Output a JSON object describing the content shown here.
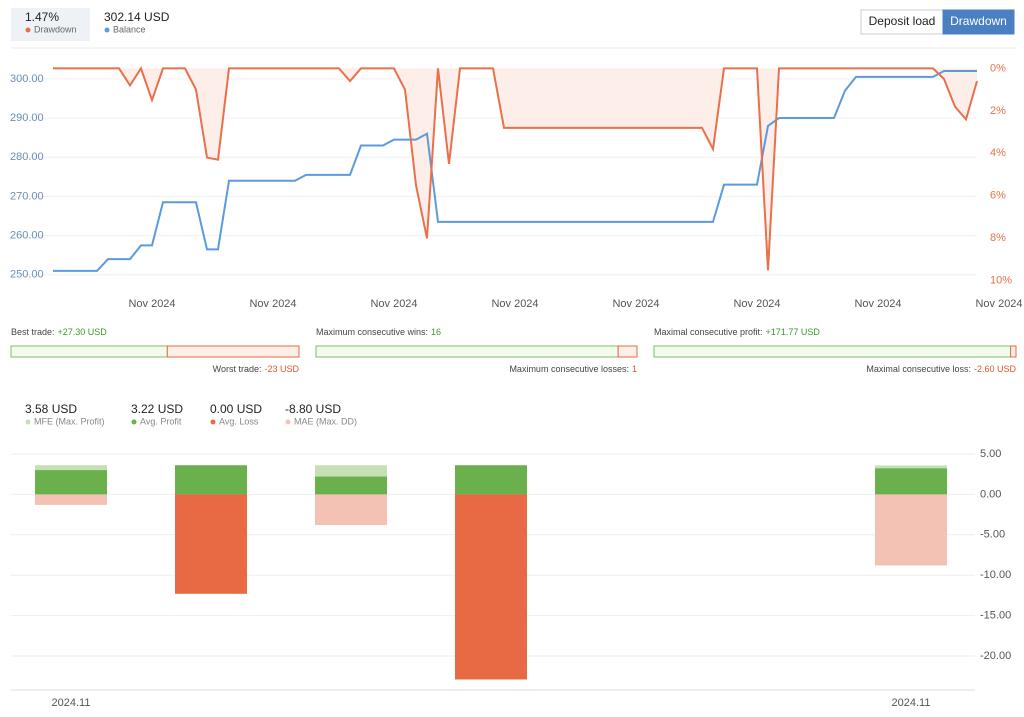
{
  "header": {
    "tabs": [
      "Deposit load",
      "Drawdown"
    ],
    "active_tab": 1
  },
  "chart_data": [
    {
      "type": "line",
      "categories": [
        null,
        null,
        null,
        null,
        null,
        null,
        null,
        null,
        null,
        "Nov 2024",
        null,
        null,
        null,
        null,
        null,
        null,
        null,
        null,
        null,
        null,
        "Nov 2024",
        null,
        null,
        null,
        null,
        null,
        null,
        null,
        null,
        null,
        null,
        "Nov 2024",
        null,
        null,
        null,
        null,
        null,
        null,
        null,
        null,
        null,
        null,
        "Nov 2024",
        null,
        null,
        null,
        null,
        null,
        null,
        null,
        null,
        null,
        null,
        "Nov 2024",
        null,
        null,
        null,
        null,
        null,
        null,
        null,
        null,
        null,
        null,
        "Nov 2024",
        null,
        null,
        null,
        null,
        null,
        null,
        null,
        null,
        null,
        null,
        "Nov 2024",
        null,
        null,
        null,
        null,
        null,
        null,
        null,
        null,
        null,
        null,
        "Nov 2024"
      ],
      "series": [
        {
          "name": "Drawdown",
          "summary": "1.47%",
          "color": "#e8704a",
          "axis": "y2",
          "area_color": "#fdeee9",
          "values": [
            0,
            0,
            0,
            0,
            0,
            0,
            0,
            0.8,
            0,
            1.5,
            0,
            0,
            0,
            1.0,
            4.2,
            4.3,
            0,
            0,
            0,
            0,
            0,
            0,
            0,
            0,
            0,
            0,
            0,
            0.6,
            0,
            0,
            0,
            0,
            1.0,
            5.5,
            8.0,
            0,
            4.5,
            0,
            0,
            0,
            0,
            2.8,
            2.8,
            2.8,
            2.8,
            2.8,
            2.8,
            2.8,
            2.8,
            2.8,
            2.8,
            2.8,
            2.8,
            2.8,
            2.8,
            2.8,
            2.8,
            2.8,
            2.8,
            2.8,
            3.8,
            0,
            0,
            0,
            0,
            9.5,
            0,
            0,
            0,
            0,
            0,
            0,
            0,
            0,
            0,
            0,
            0,
            0,
            0,
            0,
            0,
            0.5,
            1.8,
            2.4,
            0.6,
            null,
            null
          ]
        },
        {
          "name": "Balance",
          "summary": "302.14 USD",
          "color": "#5b9bdd",
          "axis": "y",
          "values": [
            251,
            251,
            251,
            251,
            251,
            254,
            254,
            254,
            257.5,
            257.5,
            268.5,
            268.5,
            268.5,
            268.5,
            256.5,
            256.5,
            274,
            274,
            274,
            274,
            274,
            274,
            274,
            275.5,
            275.5,
            275.5,
            275.5,
            275.5,
            283,
            283,
            283,
            284.5,
            284.5,
            284.5,
            286,
            263.5,
            263.5,
            263.5,
            263.5,
            263.5,
            263.5,
            263.5,
            263.5,
            263.5,
            263.5,
            263.5,
            263.5,
            263.5,
            263.5,
            263.5,
            263.5,
            263.5,
            263.5,
            263.5,
            263.5,
            263.5,
            263.5,
            263.5,
            263.5,
            263.5,
            263.5,
            273,
            273,
            273,
            273,
            288,
            290,
            290,
            290,
            290,
            290,
            290,
            297,
            300.5,
            300.5,
            300.5,
            300.5,
            300.5,
            300.5,
            300.5,
            300.5,
            302,
            302,
            302,
            302,
            null,
            null
          ]
        }
      ],
      "ylim": [
        247.4,
        304.3
      ],
      "yticks": [
        {
          "value": 250,
          "label": "250.00"
        },
        {
          "value": 260,
          "label": "260.00"
        },
        {
          "value": 270,
          "label": "270.00"
        },
        {
          "value": 280,
          "label": "280.00"
        },
        {
          "value": 290,
          "label": "290.00"
        },
        {
          "value": 300,
          "label": "300.00"
        }
      ],
      "y2lim": [
        -0.3,
        10.2
      ],
      "y2_inverted": true,
      "y2ticks": [
        {
          "value": 0,
          "label": "0%"
        },
        {
          "value": 2,
          "label": "2%"
        },
        {
          "value": 4,
          "label": "4%"
        },
        {
          "value": 6,
          "label": "6%"
        },
        {
          "value": 8,
          "label": "8%"
        },
        {
          "value": 10,
          "label": "10%"
        }
      ],
      "grid": true
    },
    {
      "type": "bar",
      "categories": [
        "2024.11",
        null,
        null,
        null,
        null,
        null,
        "2024.11"
      ],
      "series": [
        {
          "name": "MFE (Max. Profit)",
          "summary": "3.58 USD",
          "color": "#c5e0b4",
          "values": [
            3.6,
            3.6,
            3.6,
            3.6,
            null,
            null,
            3.58
          ]
        },
        {
          "name": "Avg. Profit",
          "summary": "3.22 USD",
          "color": "#6ab04c",
          "values": [
            3.0,
            3.6,
            2.2,
            3.6,
            null,
            null,
            3.22
          ]
        },
        {
          "name": "Avg. Loss",
          "summary": "0.00 USD",
          "color": "#e86a45",
          "values": [
            0,
            -12.3,
            0,
            -22.9,
            null,
            null,
            0
          ]
        },
        {
          "name": "MAE (Max. DD)",
          "summary": "-8.80 USD",
          "color": "#f4c2b4",
          "values": [
            -1.3,
            null,
            -3.8,
            null,
            null,
            null,
            -8.8
          ]
        }
      ],
      "ylim": [
        -24.2,
        5.86
      ],
      "yticks": [
        {
          "value": 5,
          "label": "5.00"
        },
        {
          "value": 0,
          "label": "0.00"
        },
        {
          "value": -5,
          "label": "-5.00"
        },
        {
          "value": -10,
          "label": "-10.00"
        },
        {
          "value": -15,
          "label": "-15.00"
        },
        {
          "value": -20,
          "label": "-20.00"
        }
      ],
      "grid": true
    }
  ],
  "stats": [
    {
      "left": {
        "label": "Best trade:",
        "amount": 27.3,
        "amount_label": "+27.30 USD"
      },
      "right": {
        "label": "Worst trade:",
        "amount": -23,
        "amount_label": "-23 USD"
      }
    },
    {
      "left": {
        "label": "Maximum consecutive wins:",
        "amount": 16,
        "amount_label": "16"
      },
      "right": {
        "label": "Maximum consecutive losses:",
        "amount": 1,
        "amount_label": "1"
      }
    },
    {
      "left": {
        "label": "Maximal consecutive profit:",
        "amount": 171.77,
        "amount_label": "+171.77 USD"
      },
      "right": {
        "label": "Maximal consecutive loss:",
        "amount": -2.6,
        "amount_label": "-2.60 USD"
      }
    }
  ]
}
